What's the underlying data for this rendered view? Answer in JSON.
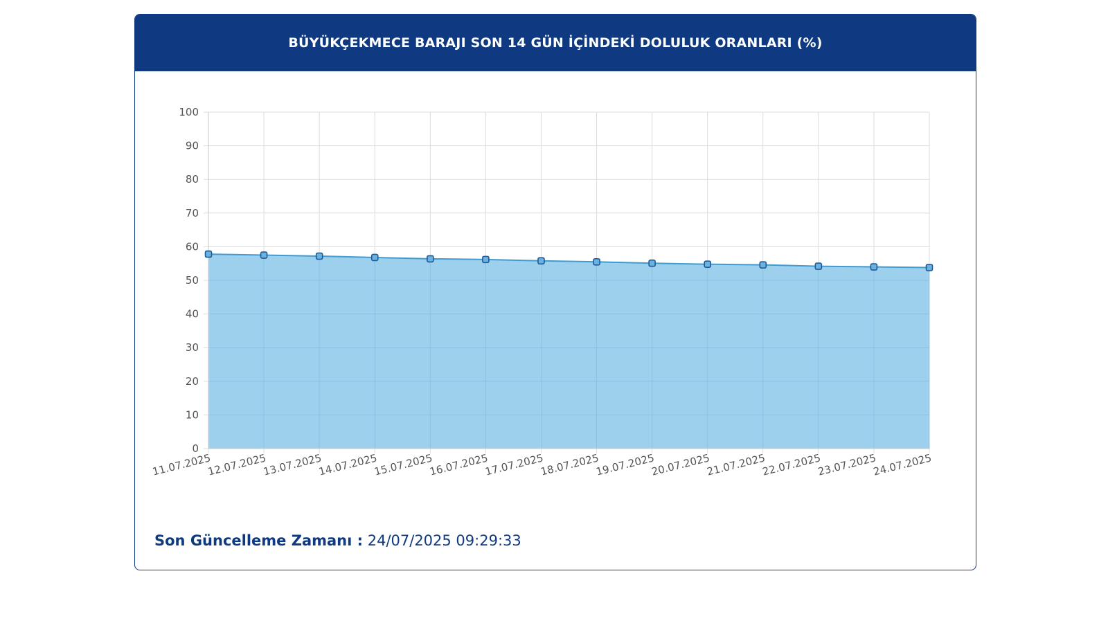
{
  "colors": {
    "header_bg": "#0f3a82",
    "area_fill": "#9dd0ec",
    "line": "#3f9bd0",
    "marker_fill": "#6ab2e0",
    "marker_stroke": "#1f5a96",
    "grid": "#dcdcdc",
    "tick_text": "#555555"
  },
  "card": {
    "title": "BÜYÜKÇEKMECE BARAJI SON 14 GÜN İÇİNDEKİ DOLULUK ORANLARI (%)"
  },
  "footer": {
    "label": "Son Güncelleme Zamanı :",
    "value": "24/07/2025 09:29:33"
  },
  "chart_data": {
    "type": "area",
    "title": "BÜYÜKÇEKMECE BARAJI SON 14 GÜN İÇİNDEKİ DOLULUK ORANLARI (%)",
    "xlabel": "",
    "ylabel": "",
    "ylim": [
      0,
      100
    ],
    "yticks": [
      0,
      10,
      20,
      30,
      40,
      50,
      60,
      70,
      80,
      90,
      100
    ],
    "grid": true,
    "categories": [
      "11.07.2025",
      "12.07.2025",
      "13.07.2025",
      "14.07.2025",
      "15.07.2025",
      "16.07.2025",
      "17.07.2025",
      "18.07.2025",
      "19.07.2025",
      "20.07.2025",
      "21.07.2025",
      "22.07.2025",
      "23.07.2025",
      "24.07.2025"
    ],
    "values": [
      57.8,
      57.5,
      57.2,
      56.8,
      56.4,
      56.2,
      55.8,
      55.5,
      55.1,
      54.8,
      54.6,
      54.2,
      54.0,
      53.8
    ]
  }
}
